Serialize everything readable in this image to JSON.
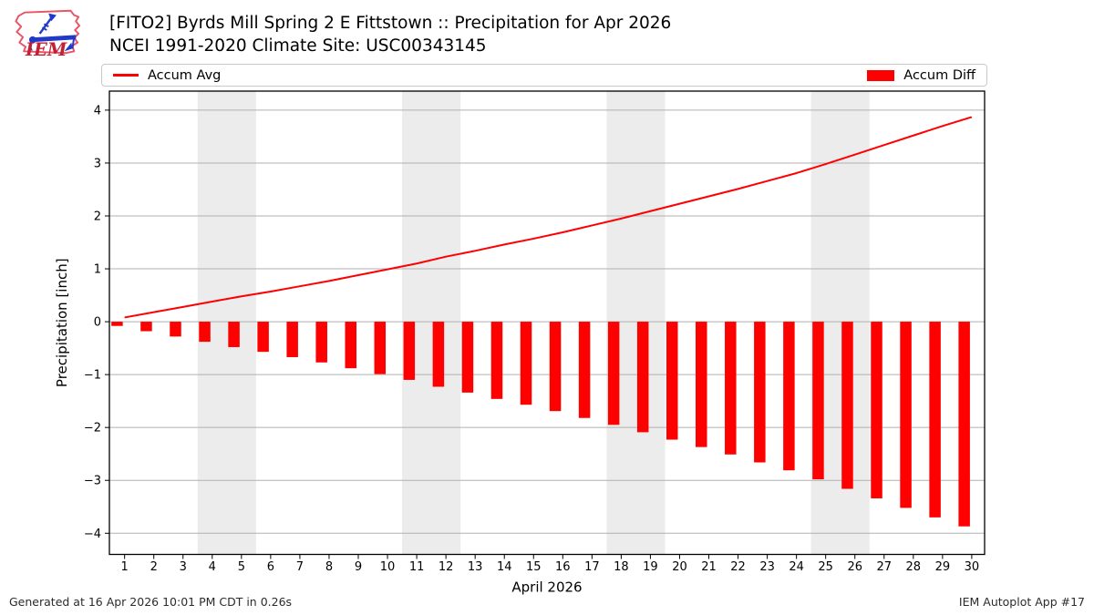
{
  "header": {
    "title_line1": "[FITO2] Byrds Mill Spring 2 E Fittstown :: Precipitation for Apr 2026",
    "title_line2": "NCEI 1991-2020 Climate Site: USC00343145",
    "logo_text": "IEM"
  },
  "legend": {
    "items": [
      {
        "label": "Accum Avg",
        "swatch": "line",
        "color": "#ff0000"
      },
      {
        "label": "Accum Diff",
        "swatch": "rect",
        "color": "#ff0000"
      }
    ]
  },
  "footer": {
    "left": "Generated at 16 Apr 2026 10:01 PM CDT in 0.26s",
    "right": "IEM Autoplot App #17"
  },
  "chart_data": {
    "type": "line+bar",
    "xlabel": "April 2026",
    "ylabel": "Precipitation [inch]",
    "x": [
      1,
      2,
      3,
      4,
      5,
      6,
      7,
      8,
      9,
      10,
      11,
      12,
      13,
      14,
      15,
      16,
      17,
      18,
      19,
      20,
      21,
      22,
      23,
      24,
      25,
      26,
      27,
      28,
      29,
      30
    ],
    "series": [
      {
        "name": "Accum Avg",
        "type": "line",
        "color": "#ff0000",
        "values": [
          0.08,
          0.18,
          0.28,
          0.38,
          0.48,
          0.57,
          0.67,
          0.77,
          0.88,
          0.99,
          1.1,
          1.23,
          1.34,
          1.46,
          1.57,
          1.69,
          1.82,
          1.95,
          2.09,
          2.23,
          2.37,
          2.51,
          2.66,
          2.81,
          2.98,
          3.16,
          3.34,
          3.52,
          3.7,
          3.87
        ]
      },
      {
        "name": "Accum Diff",
        "type": "bar",
        "color": "#ff0000",
        "values": [
          -0.08,
          -0.18,
          -0.28,
          -0.38,
          -0.48,
          -0.57,
          -0.67,
          -0.77,
          -0.88,
          -0.99,
          -1.1,
          -1.23,
          -1.34,
          -1.46,
          -1.57,
          -1.69,
          -1.82,
          -1.95,
          -2.09,
          -2.23,
          -2.37,
          -2.51,
          -2.66,
          -2.81,
          -2.98,
          -3.16,
          -3.34,
          -3.52,
          -3.7,
          -3.87
        ]
      }
    ],
    "yticks": [
      -4,
      -3,
      -2,
      -1,
      0,
      1,
      2,
      3,
      4
    ],
    "ytick_labels": [
      "−4",
      "−3",
      "−2",
      "−1",
      "0",
      "1",
      "2",
      "3",
      "4"
    ],
    "ylim": [
      -4.4,
      4.36
    ],
    "xlim": [
      0.48,
      30.44
    ],
    "grid": true,
    "legend_position": "top",
    "weekend_bands": [
      [
        3.5,
        5.5
      ],
      [
        10.5,
        12.5
      ],
      [
        17.5,
        19.5
      ],
      [
        24.5,
        26.5
      ]
    ],
    "colors": {
      "band": "#ececec",
      "grid": "#b0b0b0",
      "axis": "#000000"
    }
  }
}
